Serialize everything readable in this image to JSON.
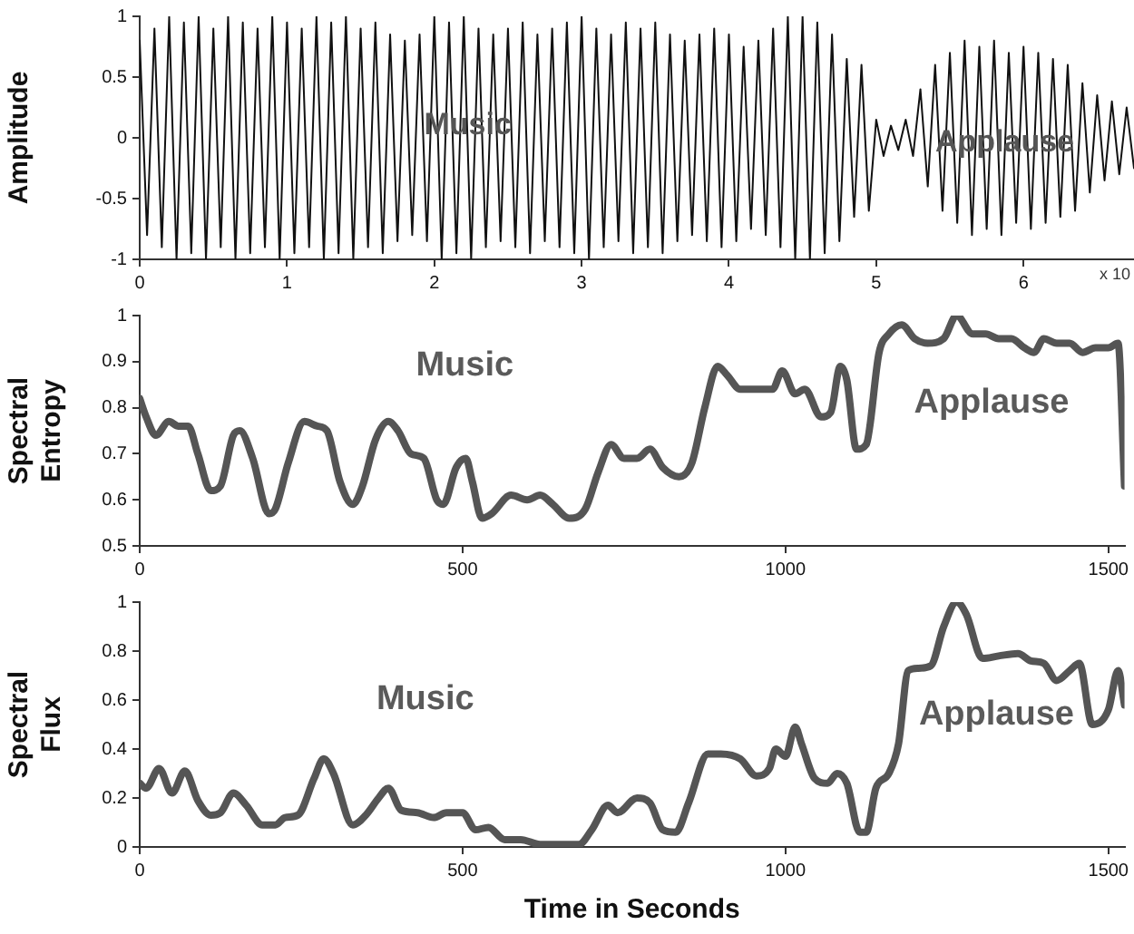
{
  "chart_data": [
    {
      "type": "line",
      "ylabel": "Amplitude",
      "xlim": [
        0,
        6.75
      ],
      "xticks": [
        0,
        1,
        2,
        3,
        4,
        5,
        6
      ],
      "ylim": [
        -1,
        1
      ],
      "yticks": [
        -1,
        -0.5,
        0,
        0.5,
        1
      ],
      "grid": false,
      "legend": false,
      "marker": "none",
      "line_style": "solid",
      "annotations": [
        "Music",
        "Applause",
        "x 10"
      ],
      "series": [
        {
          "color": "#111111",
          "x": [
            0,
            0.05,
            0.1,
            0.15,
            0.2,
            0.25,
            0.3,
            0.35,
            0.4,
            0.45,
            0.5,
            0.55,
            0.6,
            0.65,
            0.7,
            0.75,
            0.8,
            0.85,
            0.9,
            0.95,
            1,
            1.05,
            1.1,
            1.15,
            1.2,
            1.25,
            1.3,
            1.35,
            1.4,
            1.45,
            1.5,
            1.55,
            1.6,
            1.65,
            1.7,
            1.75,
            1.8,
            1.85,
            1.9,
            1.95,
            2,
            2.05,
            2.1,
            2.15,
            2.2,
            2.25,
            2.3,
            2.35,
            2.4,
            2.45,
            2.5,
            2.55,
            2.6,
            2.65,
            2.7,
            2.75,
            2.8,
            2.85,
            2.9,
            2.95,
            3,
            3.05,
            3.1,
            3.15,
            3.2,
            3.25,
            3.3,
            3.35,
            3.4,
            3.45,
            3.5,
            3.55,
            3.6,
            3.65,
            3.7,
            3.75,
            3.8,
            3.85,
            3.9,
            3.95,
            4,
            4.05,
            4.1,
            4.15,
            4.2,
            4.25,
            4.3,
            4.35,
            4.4,
            4.45,
            4.5,
            4.55,
            4.6,
            4.65,
            4.7,
            4.75,
            4.8,
            4.85,
            4.9,
            4.95,
            5,
            5.05,
            5.1,
            5.15,
            5.2,
            5.25,
            5.3,
            5.35,
            5.4,
            5.45,
            5.5,
            5.55,
            5.6,
            5.65,
            5.7,
            5.75,
            5.8,
            5.85,
            5.9,
            5.95,
            6,
            6.05,
            6.1,
            6.15,
            6.2,
            6.25,
            6.3,
            6.35,
            6.4,
            6.45,
            6.5,
            6.55,
            6.6,
            6.65,
            6.7,
            6.75
          ],
          "values": [
            0.8,
            -0.8,
            0.9,
            -0.9,
            1,
            -1,
            0.95,
            -0.95,
            1,
            -1,
            0.9,
            -0.9,
            1,
            -1,
            0.95,
            -0.95,
            0.9,
            -0.9,
            1,
            -1,
            0.95,
            -0.95,
            0.9,
            -0.9,
            1,
            -1,
            0.95,
            -0.95,
            1,
            -1,
            0.9,
            -0.9,
            0.95,
            -0.95,
            0.85,
            -0.85,
            0.8,
            -0.8,
            0.85,
            -0.85,
            1,
            -1,
            0.95,
            -0.95,
            1,
            -1,
            0.9,
            -0.9,
            0.85,
            -0.85,
            0.9,
            -0.9,
            0.95,
            -0.95,
            0.85,
            -0.85,
            0.9,
            -0.9,
            0.95,
            -0.95,
            1,
            -1,
            0.9,
            -0.9,
            0.85,
            -0.85,
            0.95,
            -0.95,
            0.9,
            -0.9,
            0.95,
            -0.95,
            0.85,
            -0.85,
            0.8,
            -0.8,
            0.85,
            -0.85,
            0.9,
            -0.9,
            0.85,
            -0.85,
            0.75,
            -0.75,
            0.8,
            -0.8,
            0.9,
            -0.9,
            1,
            -1,
            1,
            -1,
            0.95,
            -0.95,
            0.85,
            -0.85,
            0.65,
            -0.65,
            0.6,
            -0.6,
            0.15,
            -0.15,
            0.1,
            -0.1,
            0.15,
            -0.15,
            0.4,
            -0.4,
            0.6,
            -0.6,
            0.7,
            -0.7,
            0.8,
            -0.8,
            0.75,
            -0.75,
            0.8,
            -0.8,
            0.7,
            -0.7,
            0.75,
            -0.75,
            0.7,
            -0.7,
            0.65,
            -0.65,
            0.6,
            -0.6,
            0.45,
            -0.45,
            0.35,
            -0.35,
            0.3,
            -0.3,
            0.25,
            -0.25
          ]
        }
      ]
    },
    {
      "type": "line",
      "ylabel": "Spectral Entropy",
      "xlim": [
        0,
        1525
      ],
      "xticks": [
        0,
        500,
        1000,
        1500
      ],
      "ylim": [
        0.5,
        1
      ],
      "yticks": [
        0.5,
        0.6,
        0.7,
        0.8,
        0.9,
        1
      ],
      "grid": false,
      "legend": false,
      "marker": "none",
      "line_style": "solid",
      "annotations": [
        "Music",
        "Applause"
      ],
      "series": [
        {
          "color": "#555555",
          "x": [
            0,
            10,
            25,
            45,
            60,
            75,
            90,
            110,
            125,
            145,
            155,
            175,
            200,
            210,
            230,
            255,
            275,
            290,
            310,
            330,
            345,
            365,
            385,
            400,
            420,
            440,
            460,
            470,
            490,
            505,
            515,
            530,
            545,
            575,
            600,
            620,
            640,
            665,
            690,
            710,
            730,
            750,
            770,
            790,
            810,
            835,
            855,
            875,
            895,
            910,
            930,
            960,
            980,
            995,
            1015,
            1030,
            1055,
            1070,
            1085,
            1095,
            1110,
            1125,
            1145,
            1160,
            1180,
            1200,
            1220,
            1245,
            1265,
            1290,
            1310,
            1330,
            1350,
            1370,
            1385,
            1400,
            1420,
            1440,
            1460,
            1480,
            1500,
            1515,
            1525
          ],
          "values": [
            0.82,
            0.78,
            0.74,
            0.77,
            0.76,
            0.76,
            0.7,
            0.62,
            0.63,
            0.74,
            0.75,
            0.69,
            0.57,
            0.58,
            0.68,
            0.77,
            0.76,
            0.75,
            0.64,
            0.59,
            0.63,
            0.73,
            0.77,
            0.75,
            0.7,
            0.69,
            0.6,
            0.59,
            0.67,
            0.69,
            0.64,
            0.56,
            0.57,
            0.61,
            0.6,
            0.61,
            0.59,
            0.56,
            0.58,
            0.66,
            0.72,
            0.69,
            0.69,
            0.71,
            0.67,
            0.65,
            0.68,
            0.8,
            0.89,
            0.87,
            0.84,
            0.84,
            0.84,
            0.88,
            0.83,
            0.84,
            0.78,
            0.79,
            0.89,
            0.86,
            0.71,
            0.72,
            0.92,
            0.96,
            0.98,
            0.95,
            0.94,
            0.95,
            1,
            0.96,
            0.96,
            0.95,
            0.95,
            0.93,
            0.92,
            0.95,
            0.94,
            0.94,
            0.92,
            0.93,
            0.93,
            0.94,
            0.63
          ]
        }
      ]
    },
    {
      "type": "line",
      "ylabel": "Spectral Flux",
      "xlabel": "Time in Seconds",
      "xlim": [
        0,
        1525
      ],
      "xticks": [
        0,
        500,
        1000,
        1500
      ],
      "ylim": [
        0,
        1
      ],
      "yticks": [
        0,
        0.2,
        0.4,
        0.6,
        0.8,
        1
      ],
      "grid": false,
      "legend": false,
      "marker": "none",
      "line_style": "solid",
      "annotations": [
        "Music",
        "Applause"
      ],
      "series": [
        {
          "color": "#555555",
          "x": [
            0,
            10,
            30,
            50,
            70,
            90,
            110,
            125,
            145,
            165,
            190,
            210,
            225,
            245,
            270,
            285,
            300,
            330,
            350,
            370,
            385,
            405,
            430,
            455,
            475,
            500,
            520,
            540,
            565,
            590,
            620,
            680,
            700,
            725,
            740,
            770,
            790,
            810,
            830,
            850,
            880,
            900,
            930,
            955,
            975,
            985,
            1000,
            1015,
            1025,
            1045,
            1065,
            1080,
            1095,
            1115,
            1125,
            1140,
            1160,
            1175,
            1190,
            1205,
            1225,
            1245,
            1265,
            1280,
            1305,
            1330,
            1360,
            1380,
            1400,
            1420,
            1440,
            1455,
            1475,
            1500,
            1515,
            1525
          ],
          "values": [
            0.26,
            0.24,
            0.32,
            0.22,
            0.31,
            0.19,
            0.13,
            0.14,
            0.22,
            0.17,
            0.09,
            0.09,
            0.12,
            0.13,
            0.28,
            0.36,
            0.3,
            0.09,
            0.13,
            0.2,
            0.24,
            0.15,
            0.14,
            0.12,
            0.14,
            0.14,
            0.07,
            0.08,
            0.03,
            0.03,
            0.01,
            0.01,
            0.07,
            0.17,
            0.14,
            0.2,
            0.18,
            0.07,
            0.06,
            0.18,
            0.38,
            0.38,
            0.36,
            0.29,
            0.32,
            0.4,
            0.37,
            0.49,
            0.42,
            0.28,
            0.26,
            0.3,
            0.26,
            0.06,
            0.06,
            0.24,
            0.3,
            0.42,
            0.72,
            0.73,
            0.74,
            0.9,
            1,
            0.95,
            0.77,
            0.78,
            0.79,
            0.76,
            0.75,
            0.68,
            0.72,
            0.75,
            0.5,
            0.56,
            0.72,
            0.58
          ]
        }
      ]
    }
  ]
}
